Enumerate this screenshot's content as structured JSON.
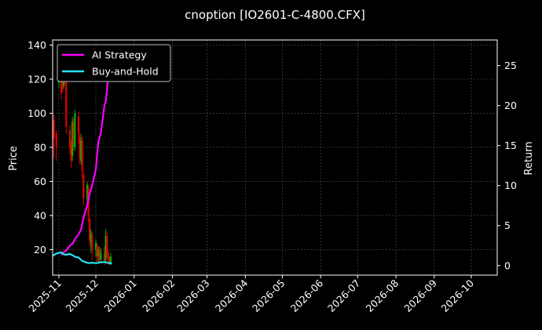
{
  "chart_data": {
    "type": "line",
    "title": "cnoption [IO2601-C-4800.CFX]",
    "ylabel_left": "Price",
    "ylabel_right": "Return",
    "ylim_left": [
      5,
      143
    ],
    "ylim_right": [
      -1.2,
      28.2
    ],
    "xlim": [
      "2025-10-27",
      "2026-10-22"
    ],
    "left_ticks": [
      20,
      40,
      60,
      80,
      100,
      120,
      140
    ],
    "right_ticks": [
      0,
      5,
      10,
      15,
      20,
      25
    ],
    "x_ticks": [
      "2025-11",
      "2025-12",
      "2026-01",
      "2026-02",
      "2026-03",
      "2026-04",
      "2026-05",
      "2026-06",
      "2026-07",
      "2026-08",
      "2026-09",
      "2026-10"
    ],
    "grid": true,
    "legend_position": "top-left",
    "colors": {
      "background": "#000000",
      "grid": "#555555",
      "up_candle": "#00b000",
      "down_candle": "#e00000",
      "ai_strategy": "#ff00ff",
      "buy_and_hold": "#22e5f0"
    },
    "series": [
      {
        "name": "AI Strategy",
        "axis": "right",
        "x": [
          "2025-11-03",
          "2025-11-05",
          "2025-11-07",
          "2025-11-10",
          "2025-11-12",
          "2025-11-14",
          "2025-11-17",
          "2025-11-19",
          "2025-11-21",
          "2025-11-24",
          "2025-11-26",
          "2025-11-28",
          "2025-12-01",
          "2025-12-03",
          "2025-12-05",
          "2025-12-08",
          "2025-12-09",
          "2025-12-10",
          "2025-12-11",
          "2025-12-12",
          "2025-12-13"
        ],
        "values": [
          1.3,
          1.7,
          1.9,
          2.5,
          2.7,
          3.3,
          3.9,
          4.5,
          6.0,
          7.5,
          9.0,
          10.0,
          12.0,
          15.5,
          16.5,
          20.0,
          20.5,
          22.0,
          24.0,
          25.0,
          26.5
        ]
      },
      {
        "name": "Buy-and-Hold",
        "axis": "right",
        "x": [
          "2025-10-27",
          "2025-10-30",
          "2025-11-03",
          "2025-11-05",
          "2025-11-07",
          "2025-11-10",
          "2025-11-12",
          "2025-11-14",
          "2025-11-17",
          "2025-11-19",
          "2025-11-21",
          "2025-11-24",
          "2025-11-26",
          "2025-11-28",
          "2025-12-01",
          "2025-12-03",
          "2025-12-05",
          "2025-12-08",
          "2025-12-10",
          "2025-12-12",
          "2025-12-14"
        ],
        "values": [
          1.2,
          1.5,
          1.65,
          1.4,
          1.35,
          1.45,
          1.3,
          1.1,
          1.0,
          0.7,
          0.5,
          0.35,
          0.3,
          0.35,
          0.3,
          0.35,
          0.4,
          0.45,
          0.35,
          0.3,
          0.25
        ]
      }
    ],
    "candles": [
      {
        "x": "2025-10-28",
        "o": 96,
        "c": 85,
        "h": 99,
        "l": 74
      },
      {
        "x": "2025-10-30",
        "o": 88,
        "c": 80,
        "h": 90,
        "l": 72
      },
      {
        "x": "2025-11-01",
        "o": 118,
        "c": 125,
        "h": 128,
        "l": 115
      },
      {
        "x": "2025-11-03",
        "o": 125,
        "c": 112,
        "h": 130,
        "l": 108
      },
      {
        "x": "2025-11-04",
        "o": 122,
        "c": 115,
        "h": 124,
        "l": 112
      },
      {
        "x": "2025-11-05",
        "o": 116,
        "c": 130,
        "h": 133,
        "l": 114
      },
      {
        "x": "2025-11-06",
        "o": 128,
        "c": 120,
        "h": 130,
        "l": 117
      },
      {
        "x": "2025-11-07",
        "o": 118,
        "c": 92,
        "h": 120,
        "l": 88
      },
      {
        "x": "2025-11-10",
        "o": 90,
        "c": 80,
        "h": 93,
        "l": 76
      },
      {
        "x": "2025-11-11",
        "o": 80,
        "c": 72,
        "h": 84,
        "l": 68
      },
      {
        "x": "2025-11-12",
        "o": 75,
        "c": 95,
        "h": 98,
        "l": 72
      },
      {
        "x": "2025-11-13",
        "o": 95,
        "c": 82,
        "h": 97,
        "l": 78
      },
      {
        "x": "2025-11-14",
        "o": 80,
        "c": 100,
        "h": 102,
        "l": 78
      },
      {
        "x": "2025-11-17",
        "o": 98,
        "c": 88,
        "h": 101,
        "l": 82
      },
      {
        "x": "2025-11-18",
        "o": 86,
        "c": 74,
        "h": 88,
        "l": 70
      },
      {
        "x": "2025-11-19",
        "o": 72,
        "c": 84,
        "h": 88,
        "l": 70
      },
      {
        "x": "2025-11-20",
        "o": 84,
        "c": 66,
        "h": 86,
        "l": 62
      },
      {
        "x": "2025-11-21",
        "o": 64,
        "c": 50,
        "h": 66,
        "l": 46
      },
      {
        "x": "2025-11-24",
        "o": 50,
        "c": 58,
        "h": 60,
        "l": 45
      },
      {
        "x": "2025-11-25",
        "o": 56,
        "c": 40,
        "h": 58,
        "l": 36
      },
      {
        "x": "2025-11-26",
        "o": 38,
        "c": 26,
        "h": 40,
        "l": 22
      },
      {
        "x": "2025-11-27",
        "o": 24,
        "c": 30,
        "h": 32,
        "l": 18
      },
      {
        "x": "2025-11-28",
        "o": 28,
        "c": 20,
        "h": 30,
        "l": 14
      },
      {
        "x": "2025-12-01",
        "o": 20,
        "c": 24,
        "h": 26,
        "l": 16
      },
      {
        "x": "2025-12-02",
        "o": 22,
        "c": 16,
        "h": 24,
        "l": 12
      },
      {
        "x": "2025-12-03",
        "o": 16,
        "c": 20,
        "h": 22,
        "l": 12
      },
      {
        "x": "2025-12-04",
        "o": 20,
        "c": 14,
        "h": 22,
        "l": 12
      },
      {
        "x": "2025-12-05",
        "o": 14,
        "c": 18,
        "h": 21,
        "l": 12
      },
      {
        "x": "2025-12-08",
        "o": 18,
        "c": 13,
        "h": 22,
        "l": 11
      },
      {
        "x": "2025-12-09",
        "o": 14,
        "c": 28,
        "h": 32,
        "l": 13
      },
      {
        "x": "2025-12-10",
        "o": 28,
        "c": 18,
        "h": 30,
        "l": 15
      },
      {
        "x": "2025-12-11",
        "o": 18,
        "c": 14,
        "h": 20,
        "l": 12
      },
      {
        "x": "2025-12-12",
        "o": 14,
        "c": 12,
        "h": 16,
        "l": 11
      },
      {
        "x": "2025-12-13",
        "o": 12,
        "c": 16,
        "h": 18,
        "l": 11
      }
    ]
  }
}
